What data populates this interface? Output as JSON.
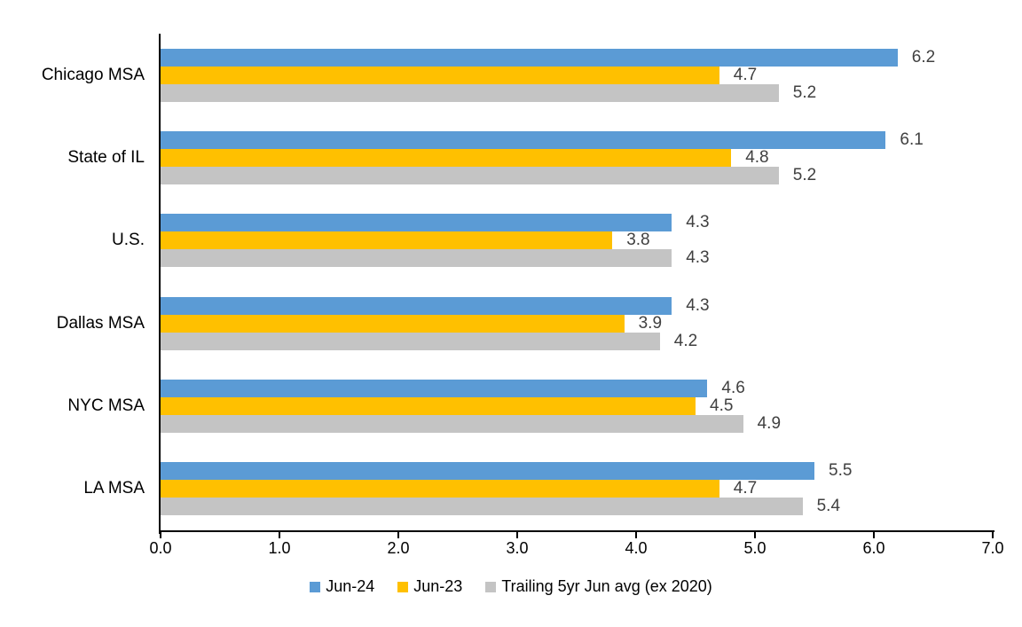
{
  "chart_data": {
    "type": "bar",
    "orientation": "horizontal",
    "title": "",
    "xlabel": "",
    "ylabel": "",
    "categories": [
      "Chicago MSA",
      "State of IL",
      "U.S.",
      "Dallas MSA",
      "NYC MSA",
      "LA MSA"
    ],
    "series": [
      {
        "name": "Jun-24",
        "color": "#5B9BD5",
        "values": [
          6.2,
          6.1,
          4.3,
          4.3,
          4.6,
          5.5
        ]
      },
      {
        "name": "Jun-23",
        "color": "#FFC000",
        "values": [
          4.7,
          4.8,
          3.8,
          3.9,
          4.5,
          4.7
        ]
      },
      {
        "name": "Trailing 5yr Jun avg (ex 2020)",
        "color": "#C4C4C4",
        "values": [
          5.2,
          5.2,
          4.3,
          4.2,
          4.9,
          5.4
        ]
      }
    ],
    "xlim": [
      0,
      7
    ],
    "x_ticks": [
      "0.0",
      "1.0",
      "2.0",
      "3.0",
      "4.0",
      "5.0",
      "6.0",
      "7.0"
    ],
    "value_format": "one-decimal",
    "data_label_color": "#404040",
    "axis_color": "#000000",
    "grid": false,
    "legend_position": "bottom"
  }
}
